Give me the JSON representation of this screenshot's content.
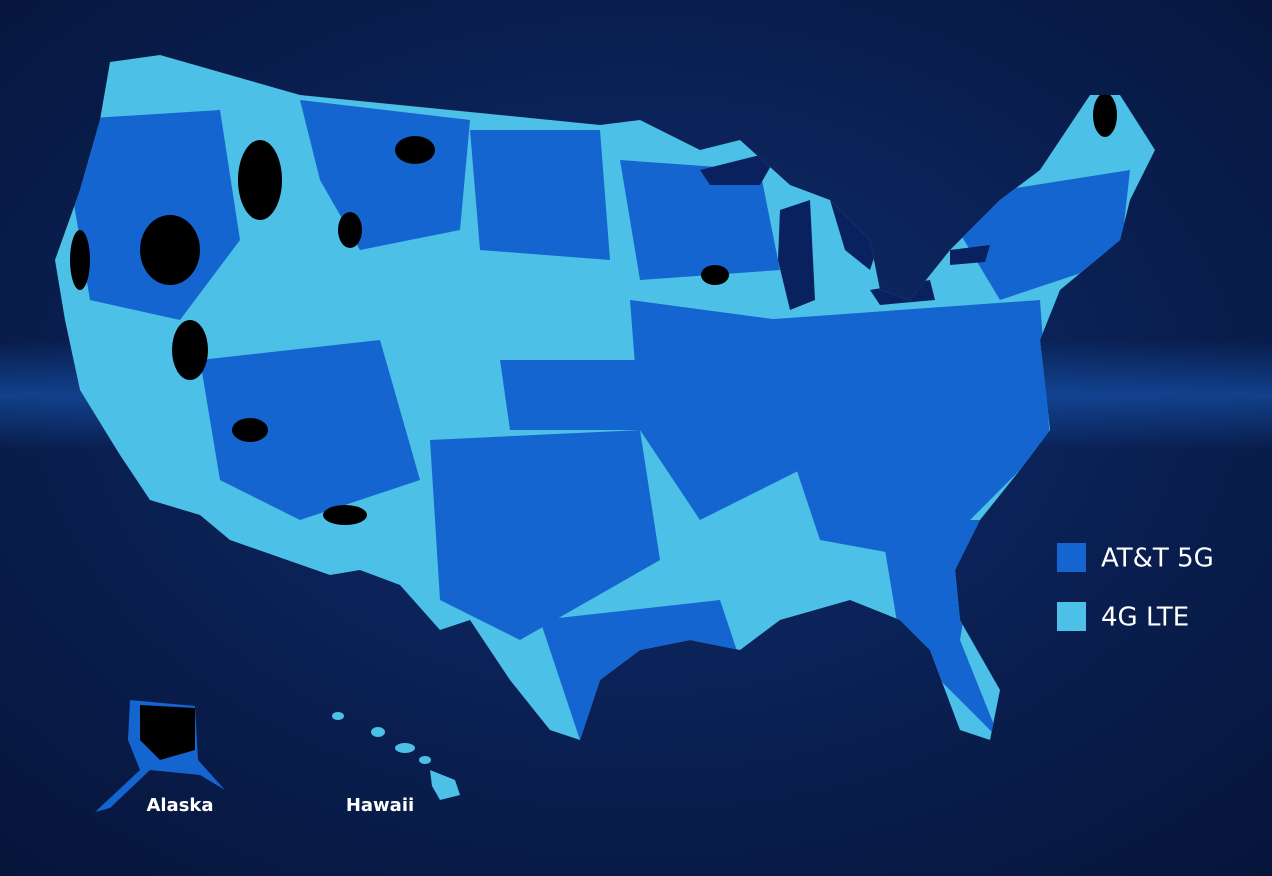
{
  "legend": {
    "items": [
      {
        "label": "AT&T 5G",
        "color": "#1565d0"
      },
      {
        "label": "4G LTE",
        "color": "#4cc0e6"
      }
    ]
  },
  "map_labels": {
    "alaska": "Alaska",
    "hawaii": "Hawaii"
  }
}
